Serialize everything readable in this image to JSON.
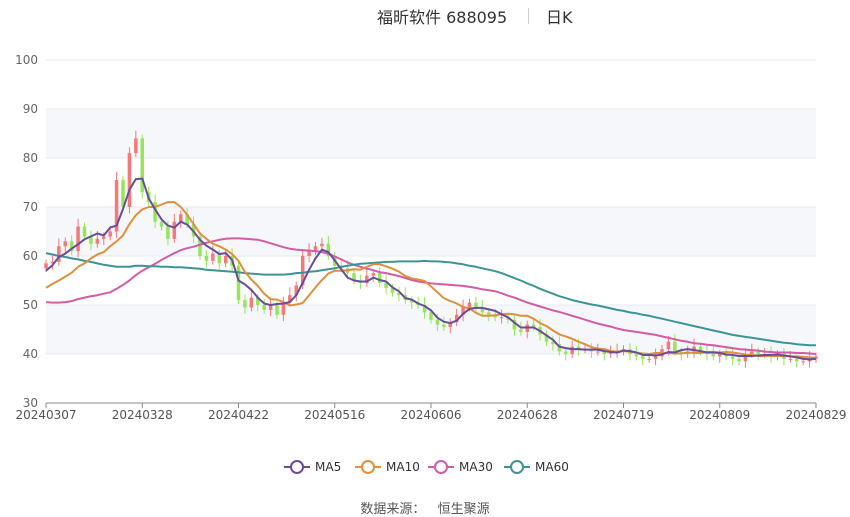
{
  "header": {
    "stock_name": "福昕软件 688095",
    "period": "日K"
  },
  "source": {
    "label": "数据来源：",
    "provider": "恒生聚源"
  },
  "colors": {
    "up": "#f47a7a",
    "down": "#96e65a",
    "MA5": "#6a4c9c",
    "MA10": "#e08f3c",
    "MA30": "#d45ba6",
    "MA60": "#3d9497",
    "grid": "#e6e9f0",
    "band": "#f5f7fb"
  },
  "chart_data": {
    "type": "candlestick",
    "title": "福昕软件 688095",
    "period": "日K",
    "ylim": [
      30,
      100
    ],
    "yticks": [
      30,
      40,
      50,
      60,
      70,
      80,
      90,
      100
    ],
    "xtick_labels": [
      "20240307",
      "20240328",
      "20240422",
      "20240516",
      "20240606",
      "20240628",
      "20240719",
      "20240809",
      "20240829"
    ],
    "xtick_index": [
      0,
      15,
      30,
      45,
      60,
      75,
      90,
      105,
      120
    ],
    "legend": {
      "position": "bottom",
      "items": [
        "MA5",
        "MA10",
        "MA30",
        "MA60"
      ]
    },
    "close": [
      58.5,
      58.8,
      62.0,
      63.0,
      61.0,
      66.0,
      64.0,
      62.5,
      63.5,
      64.0,
      65.0,
      75.5,
      70.0,
      81.0,
      84.0,
      73.0,
      71.0,
      67.0,
      66.0,
      63.5,
      67.0,
      68.5,
      66.5,
      64.0,
      60.0,
      59.0,
      60.5,
      58.5,
      60.0,
      58.0,
      51.0,
      49.5,
      51.5,
      50.0,
      49.0,
      50.0,
      48.0,
      50.5,
      52.0,
      54.0,
      60.0,
      61.0,
      62.0,
      62.5,
      60.0,
      58.0,
      57.5,
      56.5,
      55.0,
      54.5,
      56.0,
      56.5,
      54.5,
      53.5,
      52.5,
      52.0,
      51.0,
      50.5,
      50.0,
      48.5,
      47.0,
      46.0,
      45.5,
      46.5,
      48.0,
      49.5,
      50.5,
      49.5,
      48.5,
      48.0,
      47.5,
      47.5,
      47.0,
      45.0,
      44.5,
      46.0,
      45.5,
      44.0,
      42.5,
      42.0,
      40.5,
      40.0,
      41.5,
      41.0,
      41.0,
      40.5,
      40.5,
      40.0,
      40.5,
      40.5,
      41.0,
      40.0,
      39.5,
      39.0,
      39.0,
      39.5,
      41.0,
      42.5,
      40.5,
      40.0,
      40.5,
      41.5,
      40.5,
      40.0,
      39.5,
      40.0,
      39.5,
      39.0,
      38.5,
      40.0,
      40.5,
      40.0,
      40.0,
      39.5,
      40.0,
      39.0,
      39.0,
      38.5,
      38.5,
      39.0,
      39.5
    ],
    "MA5": [
      57.0,
      58.1,
      59.8,
      60.5,
      61.5,
      62.4,
      63.4,
      64.0,
      64.6,
      64.2,
      65.8,
      66.2,
      69.6,
      73.5,
      75.7,
      75.8,
      71.8,
      69.5,
      67.5,
      66.2,
      65.8,
      67.0,
      66.4,
      65.0,
      63.3,
      62.1,
      61.3,
      60.4,
      60.6,
      59.2,
      55.0,
      54.2,
      53.1,
      51.5,
      50.3,
      50.0,
      50.2,
      50.3,
      50.6,
      52.0,
      54.5,
      57.2,
      59.5,
      61.3,
      60.8,
      59.1,
      57.3,
      55.6,
      55.0,
      54.8,
      54.8,
      55.6,
      55.1,
      54.8,
      53.6,
      52.8,
      51.4,
      51.1,
      50.3,
      49.8,
      48.9,
      47.4,
      46.6,
      46.3,
      46.8,
      48.2,
      49.2,
      49.4,
      49.4,
      49.1,
      48.8,
      48.1,
      47.5,
      46.4,
      45.4,
      45.4,
      45.4,
      44.7,
      43.8,
      42.9,
      41.5,
      41.2,
      41.0,
      41.0,
      40.9,
      40.9,
      40.9,
      40.6,
      40.4,
      40.3,
      40.7,
      40.6,
      40.3,
      39.8,
      39.8,
      39.7,
      39.9,
      40.4,
      40.3,
      40.8,
      41.0,
      40.8,
      40.6,
      40.3,
      40.3,
      40.2,
      39.9,
      39.8,
      39.6,
      39.6,
      39.6,
      39.7,
      39.8,
      39.8,
      39.9,
      39.7,
      39.5,
      39.3,
      39.0,
      38.9,
      39.0
    ],
    "MA10": [
      53.5,
      54.3,
      55.0,
      55.8,
      56.6,
      57.8,
      58.5,
      59.5,
      60.3,
      60.8,
      62.0,
      63.0,
      64.2,
      66.5,
      68.3,
      69.5,
      70.0,
      70.0,
      70.5,
      71.0,
      71.0,
      70.0,
      68.4,
      66.5,
      64.6,
      63.5,
      62.5,
      62.0,
      61.3,
      60.4,
      59.0,
      56.8,
      55.2,
      53.9,
      52.3,
      51.2,
      51.1,
      50.6,
      49.9,
      50.1,
      50.4,
      52.0,
      53.6,
      55.1,
      56.4,
      57.0,
      57.0,
      57.1,
      57.3,
      57.2,
      57.8,
      58.3,
      58.3,
      57.9,
      57.4,
      56.8,
      55.9,
      55.4,
      55.2,
      54.9,
      53.8,
      52.6,
      51.4,
      50.8,
      50.3,
      49.6,
      49.3,
      48.4,
      47.8,
      47.8,
      47.9,
      48.1,
      48.2,
      48.1,
      47.8,
      47.8,
      47.2,
      46.3,
      45.7,
      44.8,
      44.0,
      43.6,
      43.1,
      42.5,
      42.0,
      41.4,
      41.1,
      41.0,
      40.6,
      40.5,
      40.6,
      40.5,
      40.3,
      40.1,
      40.0,
      40.2,
      40.2,
      40.2,
      40.1,
      40.1,
      40.3,
      40.2,
      40.2,
      40.4,
      40.4,
      40.3,
      40.4,
      40.3,
      40.1,
      39.9,
      39.8,
      39.6,
      39.6,
      39.6,
      39.6,
      39.6,
      39.5,
      39.5,
      39.4,
      39.3,
      39.2
    ],
    "MA30": [
      50.6,
      50.5,
      50.5,
      50.6,
      50.8,
      51.2,
      51.5,
      51.8,
      52.0,
      52.3,
      52.6,
      53.3,
      54.1,
      55.0,
      56.1,
      57.0,
      57.7,
      58.4,
      59.2,
      59.9,
      60.6,
      61.2,
      61.6,
      61.9,
      62.3,
      62.7,
      63.0,
      63.3,
      63.5,
      63.6,
      63.6,
      63.5,
      63.4,
      63.3,
      63.0,
      62.6,
      62.2,
      61.8,
      61.5,
      61.3,
      61.2,
      61.1,
      61.0,
      60.8,
      60.5,
      59.9,
      59.3,
      58.7,
      58.2,
      57.8,
      57.4,
      57.1,
      56.7,
      56.5,
      56.2,
      55.9,
      55.5,
      55.1,
      54.8,
      54.6,
      54.4,
      54.3,
      54.2,
      54.1,
      54.0,
      53.9,
      53.7,
      53.5,
      53.2,
      53.0,
      52.8,
      52.4,
      51.9,
      51.5,
      51.0,
      50.5,
      50.1,
      49.7,
      49.3,
      48.9,
      48.6,
      48.2,
      47.8,
      47.4,
      47.0,
      46.6,
      46.2,
      45.9,
      45.6,
      45.2,
      44.9,
      44.7,
      44.5,
      44.3,
      44.1,
      43.9,
      43.6,
      43.3,
      43.0,
      42.7,
      42.5,
      42.2,
      42.1,
      41.9,
      41.8,
      41.6,
      41.4,
      41.2,
      41.0,
      40.9,
      40.8,
      40.7,
      40.5,
      40.4,
      40.3,
      40.3,
      40.3,
      40.2,
      40.2,
      40.1,
      40.0
    ],
    "MA60": [
      60.6,
      60.3,
      60.0,
      59.8,
      59.5,
      59.3,
      59.0,
      58.8,
      58.5,
      58.2,
      58.0,
      57.8,
      57.8,
      57.8,
      58.0,
      58.0,
      57.9,
      57.9,
      57.8,
      57.8,
      57.7,
      57.7,
      57.6,
      57.5,
      57.4,
      57.2,
      57.1,
      57.0,
      56.9,
      56.8,
      56.7,
      56.5,
      56.4,
      56.3,
      56.2,
      56.2,
      56.2,
      56.2,
      56.3,
      56.5,
      56.6,
      56.8,
      56.9,
      57.1,
      57.3,
      57.5,
      57.8,
      58.0,
      58.2,
      58.4,
      58.5,
      58.6,
      58.7,
      58.8,
      58.8,
      58.9,
      58.9,
      58.9,
      58.9,
      59.0,
      58.9,
      58.9,
      58.8,
      58.7,
      58.5,
      58.3,
      58.0,
      57.8,
      57.5,
      57.2,
      56.9,
      56.5,
      56.0,
      55.5,
      55.0,
      54.4,
      53.9,
      53.3,
      52.8,
      52.3,
      51.8,
      51.4,
      51.0,
      50.7,
      50.4,
      50.1,
      49.9,
      49.6,
      49.3,
      49.0,
      48.8,
      48.5,
      48.3,
      48.0,
      47.8,
      47.5,
      47.2,
      46.9,
      46.6,
      46.3,
      46.0,
      45.7,
      45.4,
      45.1,
      44.8,
      44.5,
      44.2,
      43.9,
      43.7,
      43.5,
      43.3,
      43.1,
      42.9,
      42.7,
      42.5,
      42.3,
      42.2,
      42.0,
      41.9,
      41.8,
      41.8
    ]
  }
}
